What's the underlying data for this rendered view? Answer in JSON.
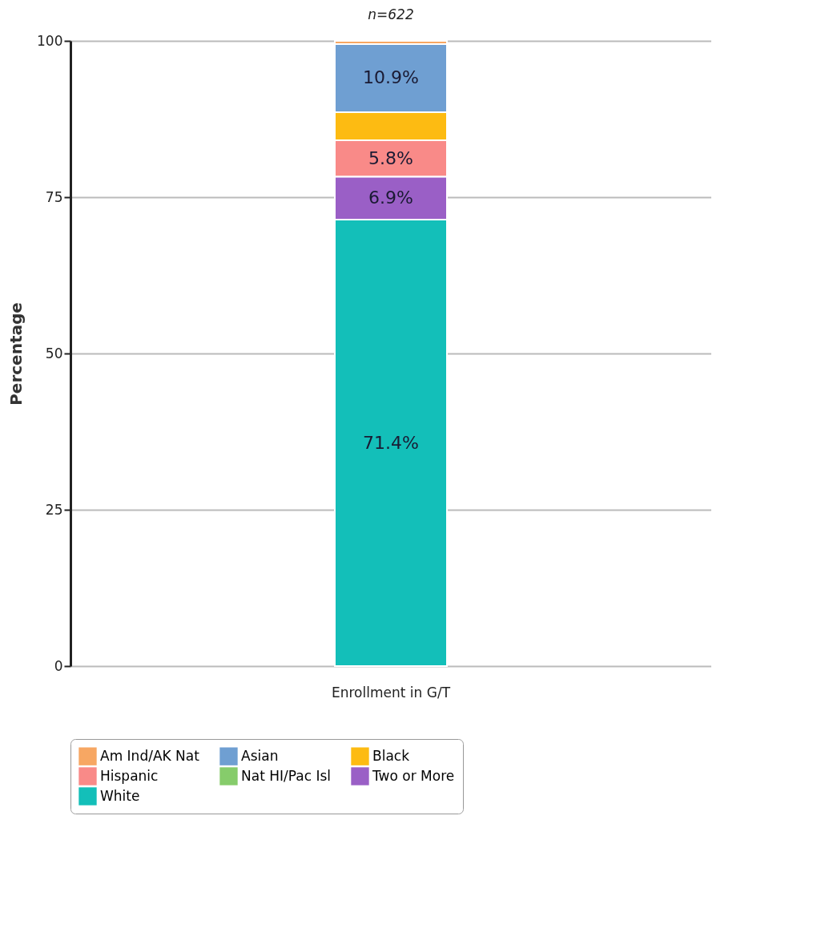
{
  "chart_data": {
    "type": "bar",
    "stacked": true,
    "title": "n=622",
    "ylabel": "Percentage",
    "categories": [
      "Enrollment in G/T"
    ],
    "series": [
      {
        "name": "White",
        "color": "#13bfb9",
        "values": [
          71.4
        ],
        "value_labels": [
          "71.4%"
        ]
      },
      {
        "name": "Two or More",
        "color": "#9a5fc6",
        "values": [
          6.9
        ],
        "value_labels": [
          "6.9%"
        ]
      },
      {
        "name": "Nat HI/Pac Isl",
        "color": "#86cc6b",
        "values": [
          0
        ],
        "value_labels": [
          null
        ]
      },
      {
        "name": "Hispanic",
        "color": "#f98a88",
        "values": [
          5.8
        ],
        "value_labels": [
          "5.8%"
        ]
      },
      {
        "name": "Black",
        "color": "#fdbb12",
        "values": [
          4.5
        ],
        "value_labels": [
          null
        ]
      },
      {
        "name": "Asian",
        "color": "#6f9fd2",
        "values": [
          10.9
        ],
        "value_labels": [
          "10.9%"
        ]
      },
      {
        "name": "Am Ind/AK Nat",
        "color": "#f7a763",
        "values": [
          0.5
        ],
        "value_labels": [
          null
        ]
      }
    ],
    "ylim": [
      0,
      100
    ],
    "yticks": [
      0,
      25,
      50,
      75,
      100
    ],
    "grid": true,
    "legend": "bottom"
  }
}
